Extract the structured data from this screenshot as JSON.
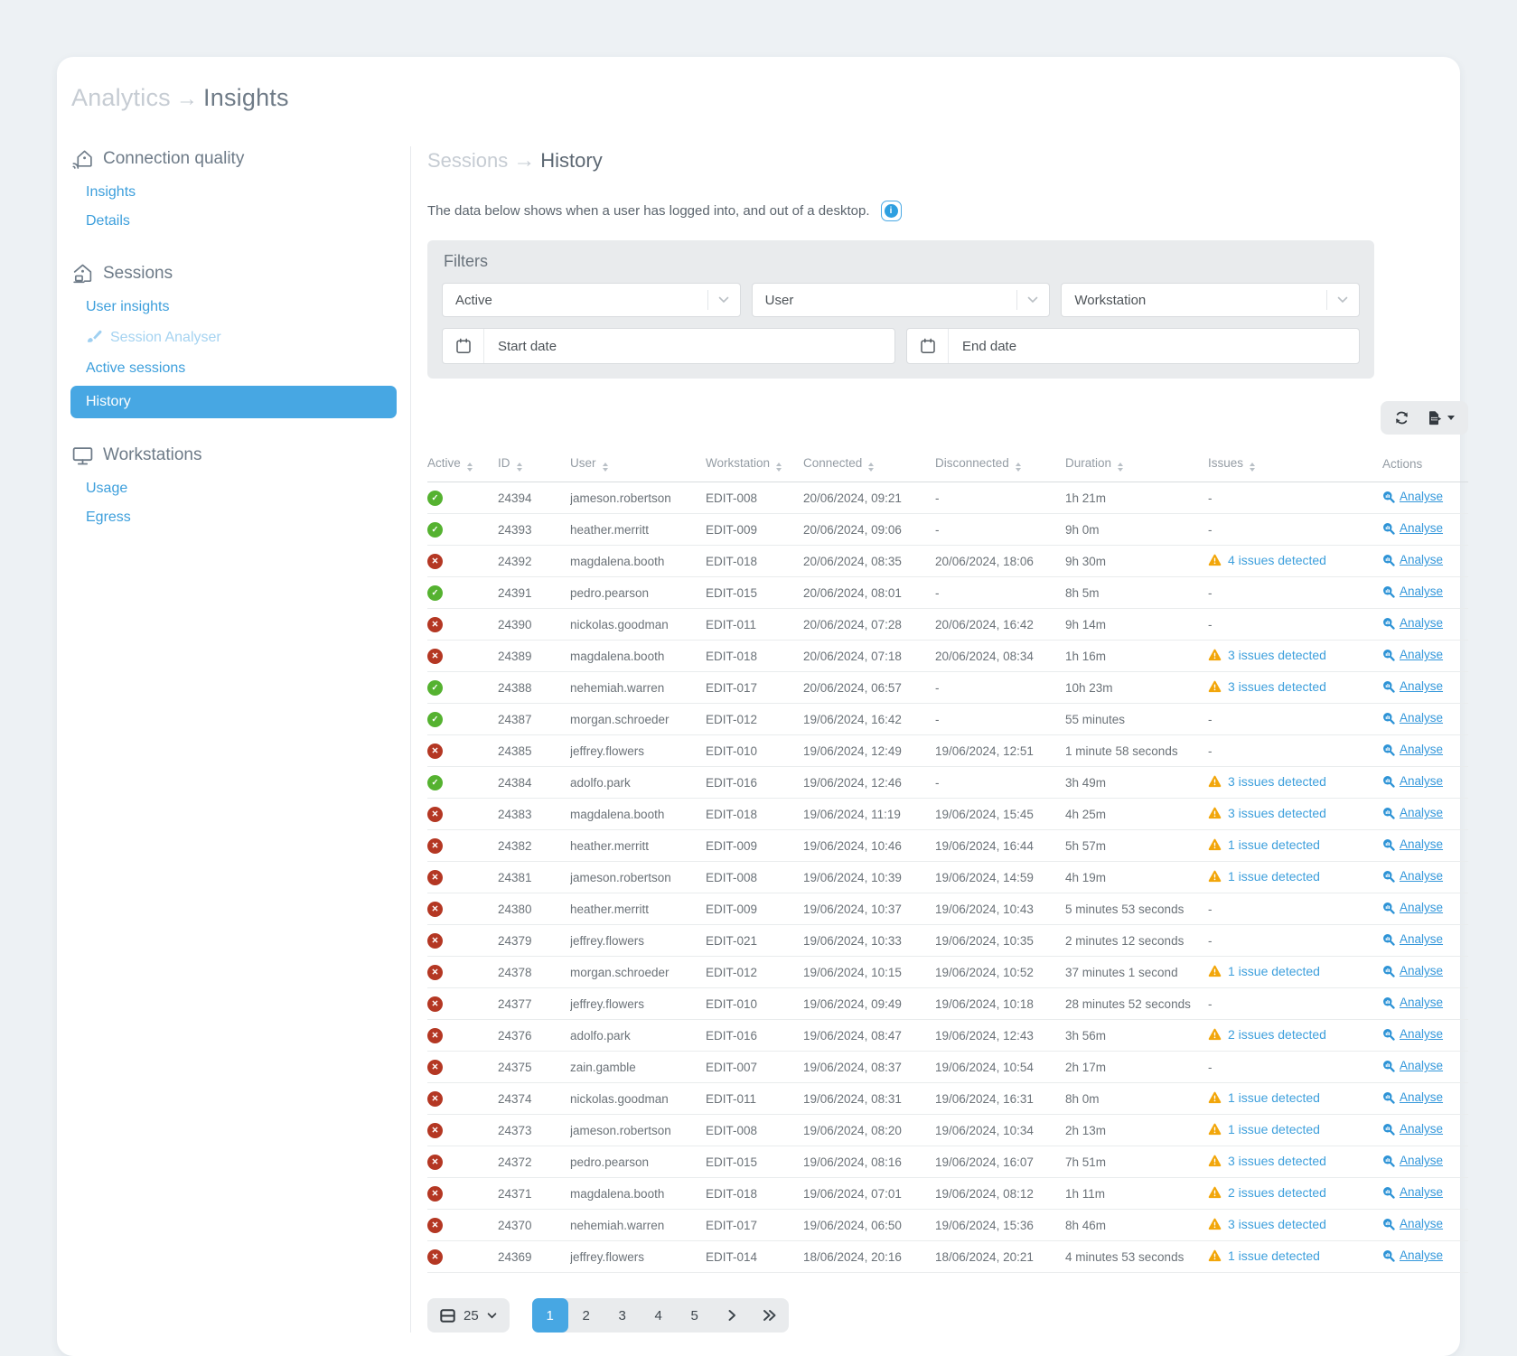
{
  "theme": {
    "accent": "#47a7e3",
    "link": "#3d9fdc",
    "success": "#55b230",
    "danger": "#b43723",
    "warning": "#f2a60a"
  },
  "header": {
    "breadcrumb": {
      "parent": "Analytics",
      "current": "Insights"
    }
  },
  "sidebar": {
    "sections": [
      {
        "label": "Connection quality",
        "icon": "signal-home-icon",
        "items": [
          {
            "label": "Insights"
          },
          {
            "label": "Details"
          }
        ]
      },
      {
        "label": "Sessions",
        "icon": "home-icon",
        "items": [
          {
            "label": "User insights"
          },
          {
            "label": "Session Analyser",
            "icon": "brush-icon",
            "disabled": true
          },
          {
            "label": "Active sessions"
          },
          {
            "label": "History",
            "active": true
          }
        ]
      },
      {
        "label": "Workstations",
        "icon": "monitor-icon",
        "items": [
          {
            "label": "Usage"
          },
          {
            "label": "Egress"
          }
        ]
      }
    ]
  },
  "main": {
    "breadcrumb": {
      "parent": "Sessions",
      "current": "History"
    },
    "description": "The data below shows when a user has logged into, and out of a desktop.",
    "filters": {
      "title": "Filters",
      "selects": [
        {
          "value": "Active"
        },
        {
          "value": "User"
        },
        {
          "value": "Workstation"
        }
      ],
      "dates": [
        {
          "placeholder": "Start date"
        },
        {
          "placeholder": "End date"
        }
      ]
    },
    "toolbar": {
      "icons": [
        "refresh-icon",
        "export-icon"
      ]
    },
    "table": {
      "columns": [
        "Active",
        "ID",
        "User",
        "Workstation",
        "Connected",
        "Disconnected",
        "Duration",
        "Issues",
        "Actions"
      ],
      "action_label": "Analyse",
      "rows": [
        {
          "active": true,
          "id": "24394",
          "user": "jameson.robertson",
          "workstation": "EDIT-008",
          "connected": "20/06/2024, 09:21",
          "disconnected": "-",
          "duration": "1h 21m",
          "issues": "-"
        },
        {
          "active": true,
          "id": "24393",
          "user": "heather.merritt",
          "workstation": "EDIT-009",
          "connected": "20/06/2024, 09:06",
          "disconnected": "-",
          "duration": "9h 0m",
          "issues": "-"
        },
        {
          "active": false,
          "id": "24392",
          "user": "magdalena.booth",
          "workstation": "EDIT-018",
          "connected": "20/06/2024, 08:35",
          "disconnected": "20/06/2024, 18:06",
          "duration": "9h 30m",
          "issues": "4 issues detected"
        },
        {
          "active": true,
          "id": "24391",
          "user": "pedro.pearson",
          "workstation": "EDIT-015",
          "connected": "20/06/2024, 08:01",
          "disconnected": "-",
          "duration": "8h 5m",
          "issues": "-"
        },
        {
          "active": false,
          "id": "24390",
          "user": "nickolas.goodman",
          "workstation": "EDIT-011",
          "connected": "20/06/2024, 07:28",
          "disconnected": "20/06/2024, 16:42",
          "duration": "9h 14m",
          "issues": "-"
        },
        {
          "active": false,
          "id": "24389",
          "user": "magdalena.booth",
          "workstation": "EDIT-018",
          "connected": "20/06/2024, 07:18",
          "disconnected": "20/06/2024, 08:34",
          "duration": "1h 16m",
          "issues": "3 issues detected"
        },
        {
          "active": true,
          "id": "24388",
          "user": "nehemiah.warren",
          "workstation": "EDIT-017",
          "connected": "20/06/2024, 06:57",
          "disconnected": "-",
          "duration": "10h 23m",
          "issues": "3 issues detected"
        },
        {
          "active": true,
          "id": "24387",
          "user": "morgan.schroeder",
          "workstation": "EDIT-012",
          "connected": "19/06/2024, 16:42",
          "disconnected": "-",
          "duration": "55 minutes",
          "issues": "-"
        },
        {
          "active": false,
          "id": "24385",
          "user": "jeffrey.flowers",
          "workstation": "EDIT-010",
          "connected": "19/06/2024, 12:49",
          "disconnected": "19/06/2024, 12:51",
          "duration": "1 minute 58 seconds",
          "issues": "-"
        },
        {
          "active": true,
          "id": "24384",
          "user": "adolfo.park",
          "workstation": "EDIT-016",
          "connected": "19/06/2024, 12:46",
          "disconnected": "-",
          "duration": "3h 49m",
          "issues": "3 issues detected"
        },
        {
          "active": false,
          "id": "24383",
          "user": "magdalena.booth",
          "workstation": "EDIT-018",
          "connected": "19/06/2024, 11:19",
          "disconnected": "19/06/2024, 15:45",
          "duration": "4h 25m",
          "issues": "3 issues detected"
        },
        {
          "active": false,
          "id": "24382",
          "user": "heather.merritt",
          "workstation": "EDIT-009",
          "connected": "19/06/2024, 10:46",
          "disconnected": "19/06/2024, 16:44",
          "duration": "5h 57m",
          "issues": "1 issue detected"
        },
        {
          "active": false,
          "id": "24381",
          "user": "jameson.robertson",
          "workstation": "EDIT-008",
          "connected": "19/06/2024, 10:39",
          "disconnected": "19/06/2024, 14:59",
          "duration": "4h 19m",
          "issues": "1 issue detected"
        },
        {
          "active": false,
          "id": "24380",
          "user": "heather.merritt",
          "workstation": "EDIT-009",
          "connected": "19/06/2024, 10:37",
          "disconnected": "19/06/2024, 10:43",
          "duration": "5 minutes 53 seconds",
          "issues": "-"
        },
        {
          "active": false,
          "id": "24379",
          "user": "jeffrey.flowers",
          "workstation": "EDIT-021",
          "connected": "19/06/2024, 10:33",
          "disconnected": "19/06/2024, 10:35",
          "duration": "2 minutes 12 seconds",
          "issues": "-"
        },
        {
          "active": false,
          "id": "24378",
          "user": "morgan.schroeder",
          "workstation": "EDIT-012",
          "connected": "19/06/2024, 10:15",
          "disconnected": "19/06/2024, 10:52",
          "duration": "37 minutes 1 second",
          "issues": "1 issue detected"
        },
        {
          "active": false,
          "id": "24377",
          "user": "jeffrey.flowers",
          "workstation": "EDIT-010",
          "connected": "19/06/2024, 09:49",
          "disconnected": "19/06/2024, 10:18",
          "duration": "28 minutes 52 seconds",
          "issues": "-"
        },
        {
          "active": false,
          "id": "24376",
          "user": "adolfo.park",
          "workstation": "EDIT-016",
          "connected": "19/06/2024, 08:47",
          "disconnected": "19/06/2024, 12:43",
          "duration": "3h 56m",
          "issues": "2 issues detected"
        },
        {
          "active": false,
          "id": "24375",
          "user": "zain.gamble",
          "workstation": "EDIT-007",
          "connected": "19/06/2024, 08:37",
          "disconnected": "19/06/2024, 10:54",
          "duration": "2h 17m",
          "issues": "-"
        },
        {
          "active": false,
          "id": "24374",
          "user": "nickolas.goodman",
          "workstation": "EDIT-011",
          "connected": "19/06/2024, 08:31",
          "disconnected": "19/06/2024, 16:31",
          "duration": "8h 0m",
          "issues": "1 issue detected"
        },
        {
          "active": false,
          "id": "24373",
          "user": "jameson.robertson",
          "workstation": "EDIT-008",
          "connected": "19/06/2024, 08:20",
          "disconnected": "19/06/2024, 10:34",
          "duration": "2h 13m",
          "issues": "1 issue detected"
        },
        {
          "active": false,
          "id": "24372",
          "user": "pedro.pearson",
          "workstation": "EDIT-015",
          "connected": "19/06/2024, 08:16",
          "disconnected": "19/06/2024, 16:07",
          "duration": "7h 51m",
          "issues": "3 issues detected"
        },
        {
          "active": false,
          "id": "24371",
          "user": "magdalena.booth",
          "workstation": "EDIT-018",
          "connected": "19/06/2024, 07:01",
          "disconnected": "19/06/2024, 08:12",
          "duration": "1h 11m",
          "issues": "2 issues detected"
        },
        {
          "active": false,
          "id": "24370",
          "user": "nehemiah.warren",
          "workstation": "EDIT-017",
          "connected": "19/06/2024, 06:50",
          "disconnected": "19/06/2024, 15:36",
          "duration": "8h 46m",
          "issues": "3 issues detected"
        },
        {
          "active": false,
          "id": "24369",
          "user": "jeffrey.flowers",
          "workstation": "EDIT-014",
          "connected": "18/06/2024, 20:16",
          "disconnected": "18/06/2024, 20:21",
          "duration": "4 minutes 53 seconds",
          "issues": "1 issue detected"
        }
      ]
    },
    "pagination": {
      "page_size": "25",
      "pages": [
        "1",
        "2",
        "3",
        "4",
        "5"
      ],
      "current": "1"
    }
  }
}
